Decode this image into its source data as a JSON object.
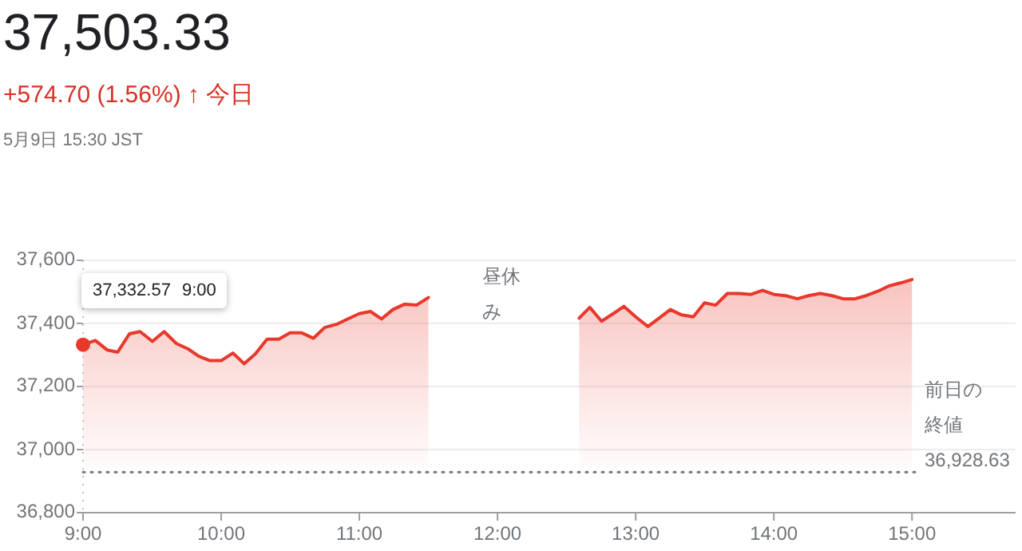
{
  "chart_data": {
    "type": "area",
    "title": "37,503.33",
    "subtitle": "+574.70 (1.56%) ↑ 今日",
    "annotations": [
      "5月9日 15:30 JST",
      {
        "text": "37,332.57 9:00",
        "x": 9,
        "y": 37332.57
      },
      "昼休み"
    ],
    "xlim": [
      9,
      15.75
    ],
    "ylim": [
      36800,
      37600
    ],
    "xticks": [
      {
        "value": 9,
        "label": "9:00"
      },
      {
        "value": 10,
        "label": "10:00"
      },
      {
        "value": 11,
        "label": "11:00"
      },
      {
        "value": 12,
        "label": "12:00"
      },
      {
        "value": 13,
        "label": "13:00"
      },
      {
        "value": 14,
        "label": "14:00"
      },
      {
        "value": 15,
        "label": "15:00"
      }
    ],
    "yticks": [
      {
        "value": 36800,
        "label": "36,800"
      },
      {
        "value": 37000,
        "label": "37,000"
      },
      {
        "value": 37200,
        "label": "37,200"
      },
      {
        "value": 37400,
        "label": "37,400"
      },
      {
        "value": 37600,
        "label": "37,600"
      }
    ],
    "grid": "y",
    "ref_lines": [
      {
        "axis": "y",
        "value": 36928.63,
        "label": "前日の終値 36,928.63",
        "line_style": "dotted",
        "color": "#757575"
      },
      {
        "axis": "x",
        "value": 9,
        "label": null,
        "line_style": "dotted",
        "color": "#bdbdbd"
      }
    ],
    "series": [
      {
        "color": "#e8382c",
        "x": [
          9,
          9.089,
          9.174,
          9.251,
          9.336,
          9.413,
          9.502,
          9.587,
          9.676,
          9.761,
          9.838,
          9.919,
          10.0,
          10.085,
          10.166,
          10.247,
          10.332,
          10.417,
          10.498,
          10.583,
          10.668,
          10.749,
          10.834,
          10.915,
          11.0,
          11.08,
          11.16,
          11.243,
          11.328,
          11.413,
          11.5,
          12.591,
          12.668,
          12.753,
          12.838,
          12.915,
          13.0,
          13.089,
          13.17,
          13.251,
          13.332,
          13.417,
          13.498,
          13.579,
          13.664,
          13.749,
          13.834,
          13.919,
          14.0,
          14.085,
          14.17,
          14.251,
          14.336,
          14.421,
          14.502,
          14.587,
          14.668,
          14.753,
          14.834,
          14.923,
          15.0
        ],
        "values": [
          37332.57,
          37346,
          37316,
          37309,
          37367,
          37374,
          37343,
          37374,
          37336,
          37319,
          37296,
          37282,
          37282,
          37306,
          37272,
          37303,
          37350,
          37350,
          37370,
          37370,
          37353,
          37387,
          37397,
          37414,
          37431,
          37438,
          37414,
          37444,
          37461,
          37458,
          37482,
          37417,
          37451,
          37407,
          37431,
          37454,
          37421,
          37390,
          37417,
          37444,
          37427,
          37421,
          37465,
          37458,
          37495,
          37495,
          37492,
          37505,
          37492,
          37488,
          37478,
          37488,
          37495,
          37488,
          37478,
          37478,
          37488,
          37502,
          37519,
          37529,
          37539
        ]
      }
    ]
  }
}
